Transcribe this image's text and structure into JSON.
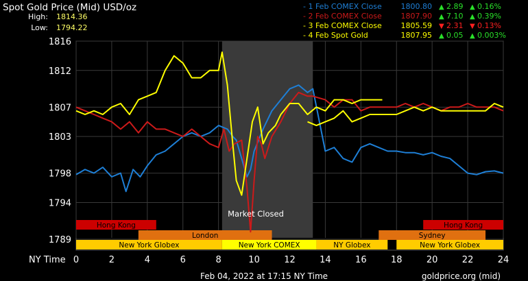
{
  "header": {
    "title": "Spot Gold Price (Mid) USD/oz",
    "high_label": "High:",
    "high_value": "1814.36",
    "low_label": "Low:",
    "low_value": "1794.22"
  },
  "legend": [
    {
      "label": "- 1 Feb COMEX Close",
      "price": "1800.80",
      "change": "2.89",
      "pct": "0.16%",
      "dir": "up",
      "color": "#1e7fd6"
    },
    {
      "label": "- 2 Feb COMEX Close",
      "price": "1807.90",
      "change": "7.10",
      "pct": "0.39%",
      "dir": "up",
      "color": "#cc1a1a"
    },
    {
      "label": "- 3 Feb COMEX Close",
      "price": "1805.59",
      "change": "2.31",
      "pct": "0.13%",
      "dir": "down",
      "color": "#ffff00"
    },
    {
      "label": "- 4 Feb Spot Gold",
      "price": "1807.95",
      "change": "0.05",
      "pct": "0.003%",
      "dir": "up",
      "color": "#ffff00"
    }
  ],
  "colors": {
    "up": "#29e029",
    "down": "#ff2020",
    "closed_band": "#3a3a3a",
    "grid": "#3a3a3a"
  },
  "market_closed_label": "Market Closed",
  "x_axis_title": "NY Time",
  "footer": {
    "timestamp": "Feb 04, 2022 at 17:15 NY Time",
    "source": "goldprice.org (mid)"
  },
  "sessions": [
    {
      "label": "Hong Kong",
      "start": 0,
      "end": 4.5,
      "row": 0,
      "color": "#cc0000"
    },
    {
      "label": "Hong Kong",
      "start": 19.5,
      "end": 24,
      "row": 0,
      "color": "#cc0000"
    },
    {
      "label": "London",
      "start": 3.5,
      "end": 11,
      "row": 1,
      "color": "#e07010"
    },
    {
      "label": "Sydney",
      "start": 17,
      "end": 23,
      "row": 1,
      "color": "#e07010"
    },
    {
      "label": "New York Globex",
      "start": 0,
      "end": 8.2,
      "row": 2,
      "color": "#ffcc00"
    },
    {
      "label": "New York COMEX",
      "start": 8.2,
      "end": 13.5,
      "row": 2,
      "color": "#ffff00"
    },
    {
      "label": "NY Globex",
      "start": 13.5,
      "end": 17.5,
      "row": 2,
      "color": "#ffcc00"
    },
    {
      "label": "New York Globex",
      "start": 18,
      "end": 24,
      "row": 2,
      "color": "#ffcc00"
    }
  ],
  "chart_data": {
    "type": "line",
    "title": "Spot Gold Price (Mid) USD/oz",
    "xlabel": "NY Time",
    "ylabel": "",
    "xlim": [
      0,
      24
    ],
    "ylim": [
      1787.5,
      1816
    ],
    "x_ticks": [
      0,
      2,
      4,
      6,
      8,
      10,
      12,
      14,
      16,
      18,
      20,
      22,
      24
    ],
    "y_ticks": [
      1789,
      1794,
      1798,
      1803,
      1807,
      1812,
      1816
    ],
    "market_closed": [
      8.2,
      13.3
    ],
    "grid": true,
    "series": [
      {
        "name": "1 Feb COMEX Close",
        "color": "#1e7fd6",
        "x": [
          0,
          0.5,
          1,
          1.5,
          2,
          2.5,
          2.8,
          3.2,
          3.6,
          4,
          4.5,
          5,
          5.5,
          6,
          6.5,
          7,
          7.5,
          8,
          8.5,
          8.8,
          9,
          9.3,
          9.6,
          9.8,
          10.0,
          10.5,
          11,
          11.5,
          12,
          12.5,
          13,
          13.3,
          14,
          14.5,
          15,
          15.5,
          16,
          16.5,
          17,
          17.5,
          18,
          18.5,
          19,
          19.5,
          20,
          20.5,
          21,
          21.5,
          22,
          22.5,
          23,
          23.5,
          24
        ],
        "y": [
          1797.8,
          1798.5,
          1798.0,
          1798.8,
          1797.5,
          1798.0,
          1795.5,
          1798.5,
          1797.5,
          1799.0,
          1800.5,
          1801.0,
          1802.0,
          1803.0,
          1803.5,
          1803.0,
          1803.5,
          1804.5,
          1804.0,
          1803.0,
          1802.5,
          1800.0,
          1797.5,
          1798.5,
          1801.0,
          1804.0,
          1806.5,
          1808.0,
          1809.5,
          1810.0,
          1809.0,
          1809.5,
          1801.0,
          1801.5,
          1800.0,
          1799.5,
          1801.5,
          1802.0,
          1801.5,
          1801.0,
          1801.0,
          1800.8,
          1800.8,
          1800.5,
          1800.8,
          1800.3,
          1800.0,
          1799.0,
          1798.0,
          1797.8,
          1798.2,
          1798.3,
          1798.0
        ]
      },
      {
        "name": "2 Feb COMEX Close",
        "color": "#cc1a1a",
        "x": [
          0,
          0.5,
          1,
          1.5,
          2,
          2.5,
          3,
          3.5,
          4,
          4.5,
          5,
          5.5,
          6,
          6.5,
          7,
          7.5,
          8,
          8.3,
          8.6,
          8.9,
          9.3,
          9.6,
          9.8,
          10.0,
          10.2,
          10.4,
          10.6,
          11,
          11.5,
          12,
          12.5,
          13,
          13.3,
          14,
          14.5,
          15,
          15.5,
          16,
          16.5,
          17,
          17.5,
          18,
          18.5,
          19,
          19.5,
          20,
          20.5,
          21,
          21.5,
          22,
          22.5,
          23,
          23.5,
          24
        ],
        "y": [
          1807.0,
          1806.5,
          1806.0,
          1805.5,
          1805.0,
          1804.0,
          1805.0,
          1803.5,
          1805.0,
          1804.0,
          1804.0,
          1803.5,
          1803.0,
          1804.0,
          1803.0,
          1802.0,
          1801.5,
          1804.0,
          1801.0,
          1802.0,
          1802.5,
          1796.0,
          1790.0,
          1797.0,
          1803.0,
          1802.0,
          1800.0,
          1803.0,
          1805.0,
          1807.5,
          1809.0,
          1808.5,
          1808.5,
          1808.0,
          1807.0,
          1808.0,
          1808.0,
          1806.5,
          1807.0,
          1807.0,
          1807.0,
          1807.0,
          1807.5,
          1807.0,
          1807.5,
          1807.0,
          1806.5,
          1807.0,
          1807.0,
          1807.5,
          1807.0,
          1807.0,
          1807.0,
          1806.5
        ]
      },
      {
        "name": "3 Feb COMEX Close",
        "color": "#ffff00",
        "x": [
          0,
          0.5,
          1,
          1.5,
          2,
          2.5,
          3,
          3.5,
          4,
          4.5,
          5,
          5.5,
          6,
          6.5,
          7,
          7.5,
          8,
          8.2,
          8.5,
          8.8,
          9.0,
          9.3,
          9.6,
          9.9,
          10.2,
          10.5,
          10.8,
          11.2,
          11.5,
          12,
          12.5,
          13,
          13.5,
          14,
          14.5,
          15,
          15.5,
          16,
          16.5,
          17,
          17.2
        ],
        "y": [
          1806.5,
          1806.0,
          1806.5,
          1806.0,
          1807.0,
          1807.5,
          1806.0,
          1808.0,
          1808.5,
          1809.0,
          1812.0,
          1814.0,
          1813.0,
          1811.0,
          1811.0,
          1812.0,
          1812.0,
          1814.5,
          1810.0,
          1802.0,
          1797.0,
          1795.0,
          1800.0,
          1805.0,
          1807.0,
          1802.0,
          1803.5,
          1804.5,
          1806.0,
          1807.5,
          1807.5,
          1806.0,
          1807.0,
          1806.5,
          1808.0,
          1808.0,
          1807.5,
          1808.0,
          1808.0,
          1808.0,
          1808.0
        ]
      },
      {
        "name": "4 Feb Spot Gold",
        "color": "#ffff00",
        "x": [
          13.0,
          13.5,
          14,
          14.5,
          15,
          15.5,
          16,
          16.5,
          17,
          17.5,
          18,
          18.5,
          19,
          19.5,
          20,
          20.5,
          21,
          21.5,
          22,
          22.5,
          23,
          23.5,
          24
        ],
        "y": [
          1805.0,
          1804.5,
          1805.0,
          1805.5,
          1806.5,
          1805.0,
          1805.5,
          1806.0,
          1806.0,
          1806.0,
          1806.0,
          1806.5,
          1807.0,
          1806.5,
          1807.0,
          1806.5,
          1806.5,
          1806.5,
          1806.5,
          1806.5,
          1806.5,
          1807.5,
          1807.0
        ]
      }
    ]
  }
}
